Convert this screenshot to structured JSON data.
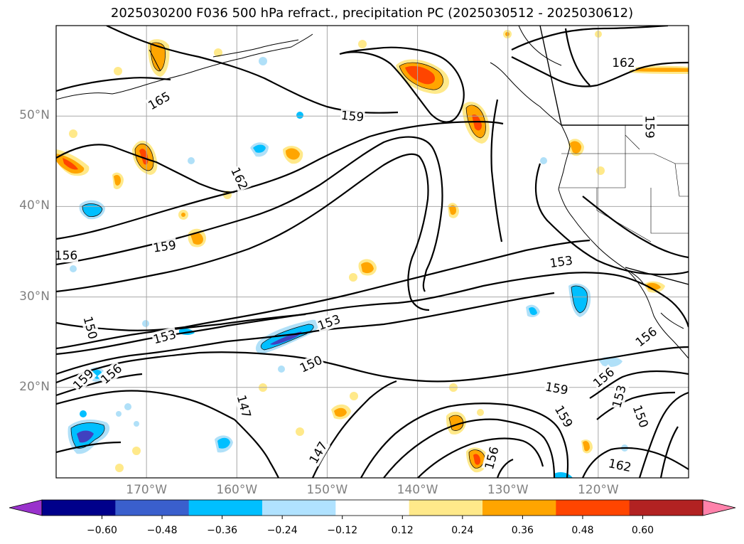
{
  "title": "2025030200 F036 500 hPa refract., precipitation PC (2025030512 - 2025030612)",
  "map": {
    "extent": {
      "lon_min": -180,
      "lon_max": -110,
      "lat_min": 10,
      "lat_max": 60
    },
    "gridlines": true,
    "lat_ticks": [
      {
        "lat": 50,
        "label": "50°N"
      },
      {
        "lat": 40,
        "label": "40°N"
      },
      {
        "lat": 30,
        "label": "30°N"
      },
      {
        "lat": 20,
        "label": "20°N"
      }
    ],
    "lon_ticks": [
      {
        "lon": -170,
        "label": "170°W"
      },
      {
        "lon": -160,
        "label": "160°W"
      },
      {
        "lon": -150,
        "label": "150°W"
      },
      {
        "lon": -140,
        "label": "140°W"
      },
      {
        "lon": -130,
        "label": "130°W"
      },
      {
        "lon": -120,
        "label": "120°W"
      }
    ],
    "contour_labels": [
      {
        "text": "165",
        "lon": -168.6,
        "lat": 51.7,
        "rot": -30
      },
      {
        "text": "159",
        "lon": -147.2,
        "lat": 50.0,
        "rot": 5
      },
      {
        "text": "162",
        "lon": -117.2,
        "lat": 55.9,
        "rot": 0
      },
      {
        "text": "159",
        "lon": -114.3,
        "lat": 48.8,
        "rot": 90
      },
      {
        "text": "162",
        "lon": -159.7,
        "lat": 43.1,
        "rot": 65
      },
      {
        "text": "159",
        "lon": -168.0,
        "lat": 35.6,
        "rot": -8
      },
      {
        "text": "156",
        "lon": -178.9,
        "lat": 34.6,
        "rot": 0
      },
      {
        "text": "153",
        "lon": -124.1,
        "lat": 33.9,
        "rot": -8
      },
      {
        "text": "150",
        "lon": -176.2,
        "lat": 26.6,
        "rot": 75
      },
      {
        "text": "153",
        "lon": -168.0,
        "lat": 25.6,
        "rot": -15
      },
      {
        "text": "153",
        "lon": -149.8,
        "lat": 27.2,
        "rot": -20
      },
      {
        "text": "156",
        "lon": -114.7,
        "lat": 25.6,
        "rot": -38
      },
      {
        "text": "159",
        "lon": -177.0,
        "lat": 20.9,
        "rot": -45
      },
      {
        "text": "156",
        "lon": -173.9,
        "lat": 21.5,
        "rot": -40
      },
      {
        "text": "150",
        "lon": -151.8,
        "lat": 22.6,
        "rot": -25
      },
      {
        "text": "156",
        "lon": -119.4,
        "lat": 21.1,
        "rot": -40
      },
      {
        "text": "153",
        "lon": -117.7,
        "lat": 19.0,
        "rot": -75
      },
      {
        "text": "159",
        "lon": -124.6,
        "lat": 19.9,
        "rot": 10
      },
      {
        "text": "159",
        "lon": -123.8,
        "lat": 16.8,
        "rot": 60
      },
      {
        "text": "150",
        "lon": -115.3,
        "lat": 16.8,
        "rot": 70
      },
      {
        "text": "147",
        "lon": -159.2,
        "lat": 17.9,
        "rot": 75
      },
      {
        "text": "147",
        "lon": -151.0,
        "lat": 12.8,
        "rot": -60
      },
      {
        "text": "156",
        "lon": -131.8,
        "lat": 12.2,
        "rot": -75
      },
      {
        "text": "162",
        "lon": -117.6,
        "lat": 11.4,
        "rot": 12
      }
    ],
    "precip_shading_level_colors": {
      "-0.48": "#4040c0",
      "-0.36": "#00bfff",
      "-0.24": "#b0e0f8",
      "0.24": "#ffe98a",
      "0.36": "#ffa500",
      "0.48": "#ff4500"
    }
  },
  "colorbar": {
    "ticks": [
      "−0.60",
      "−0.48",
      "−0.36",
      "−0.24",
      "−0.12",
      "0.12",
      "0.24",
      "0.36",
      "0.48",
      "0.60"
    ],
    "under_color": "#9932cc",
    "over_color": "#ff82ab",
    "colors": [
      "#00008b",
      "#3a5fcd",
      "#00bfff",
      "#b0e2ff",
      "#ffffff",
      "#ffe98a",
      "#ffa500",
      "#ff4500",
      "#b22222"
    ]
  }
}
